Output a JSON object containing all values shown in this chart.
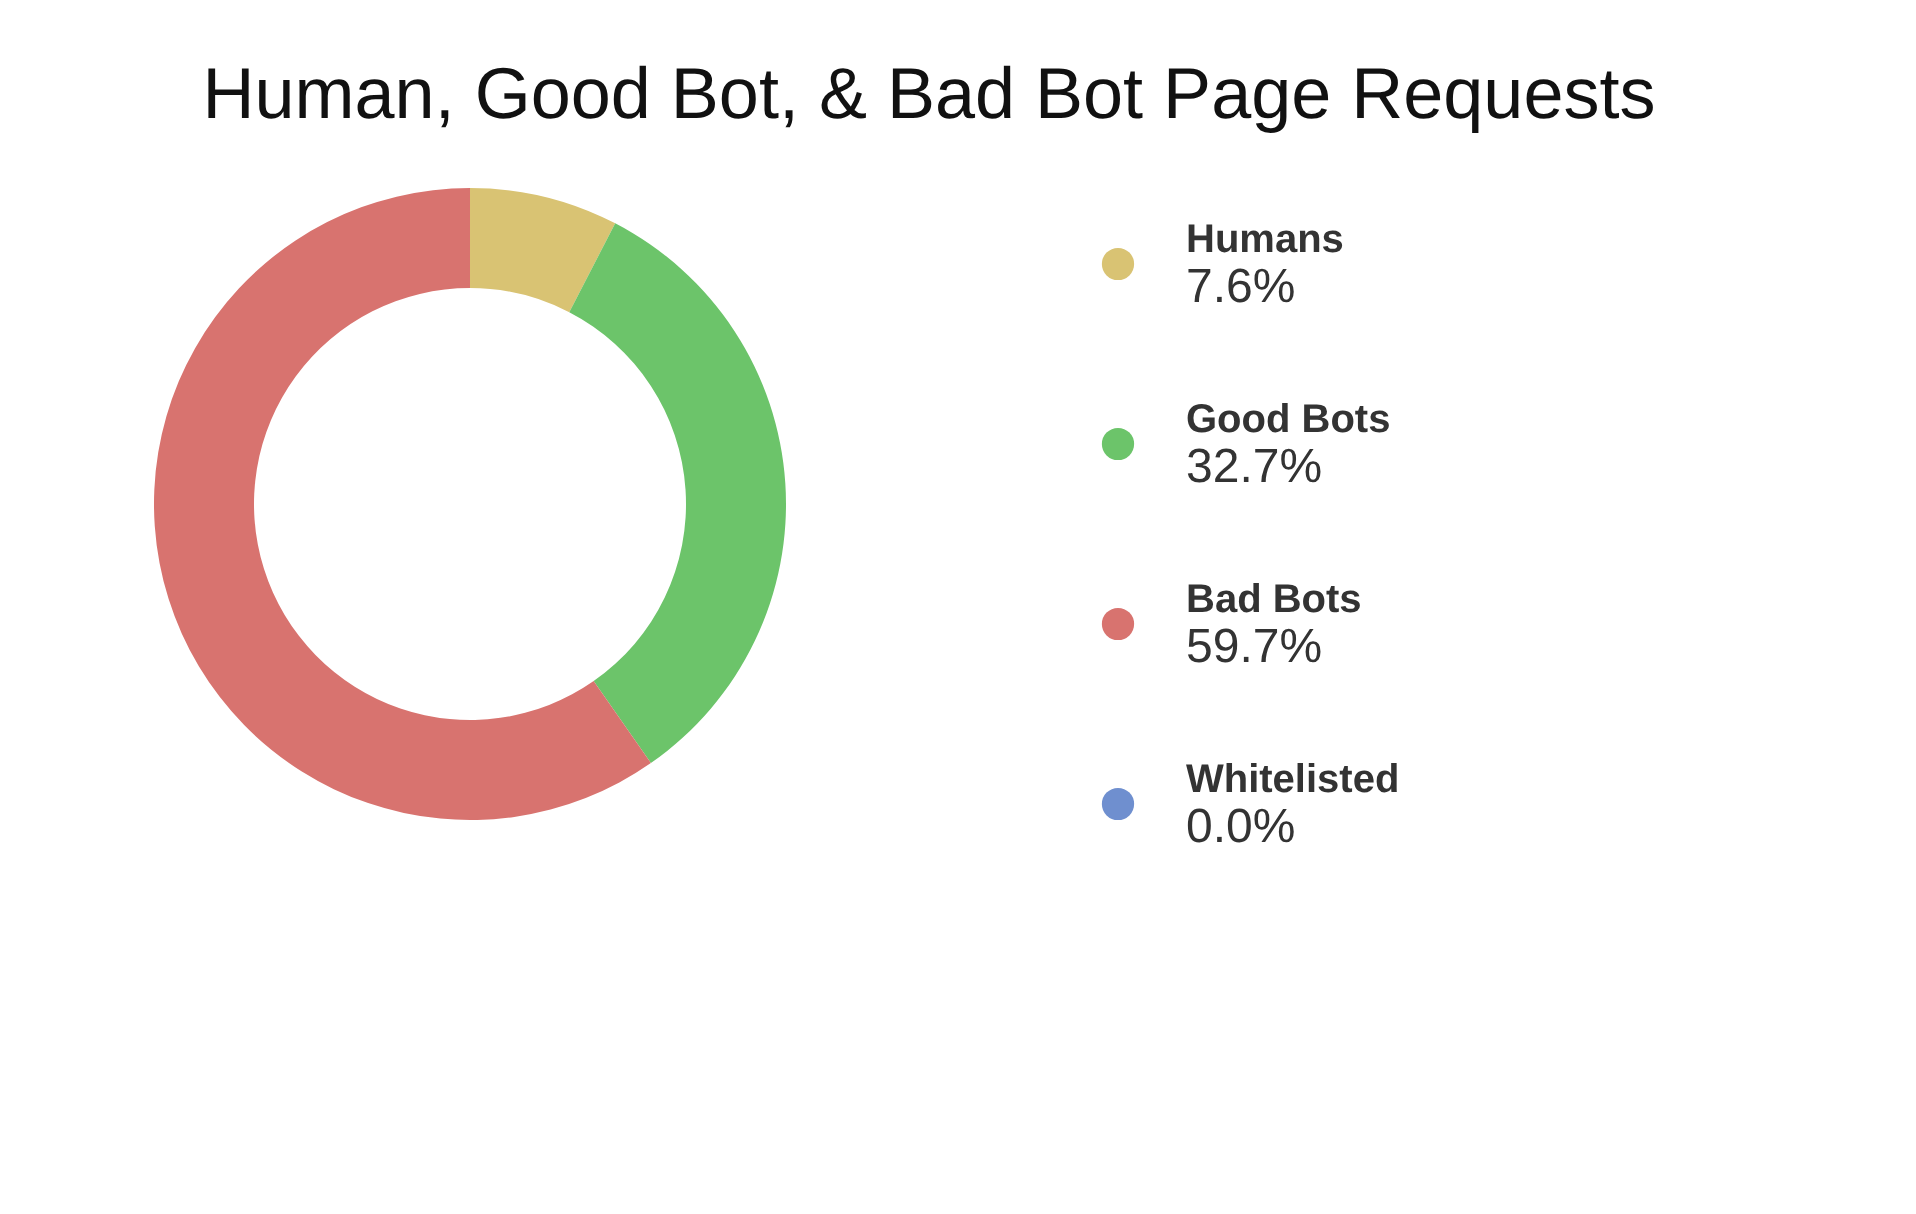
{
  "chart_data": {
    "type": "donut",
    "title": "Human, Good Bot, & Bad Bot Page Requests",
    "categories": [
      "Humans",
      "Good Bots",
      "Bad Bots",
      "Whitelisted"
    ],
    "values": [
      7.6,
      32.7,
      59.7,
      0.0
    ],
    "value_labels": [
      "7.6%",
      "32.7%",
      "59.7%",
      "0.0%"
    ],
    "colors": [
      "#d9c373",
      "#6cc46a",
      "#d8736f",
      "#6f8fcf"
    ],
    "legend": "right"
  }
}
